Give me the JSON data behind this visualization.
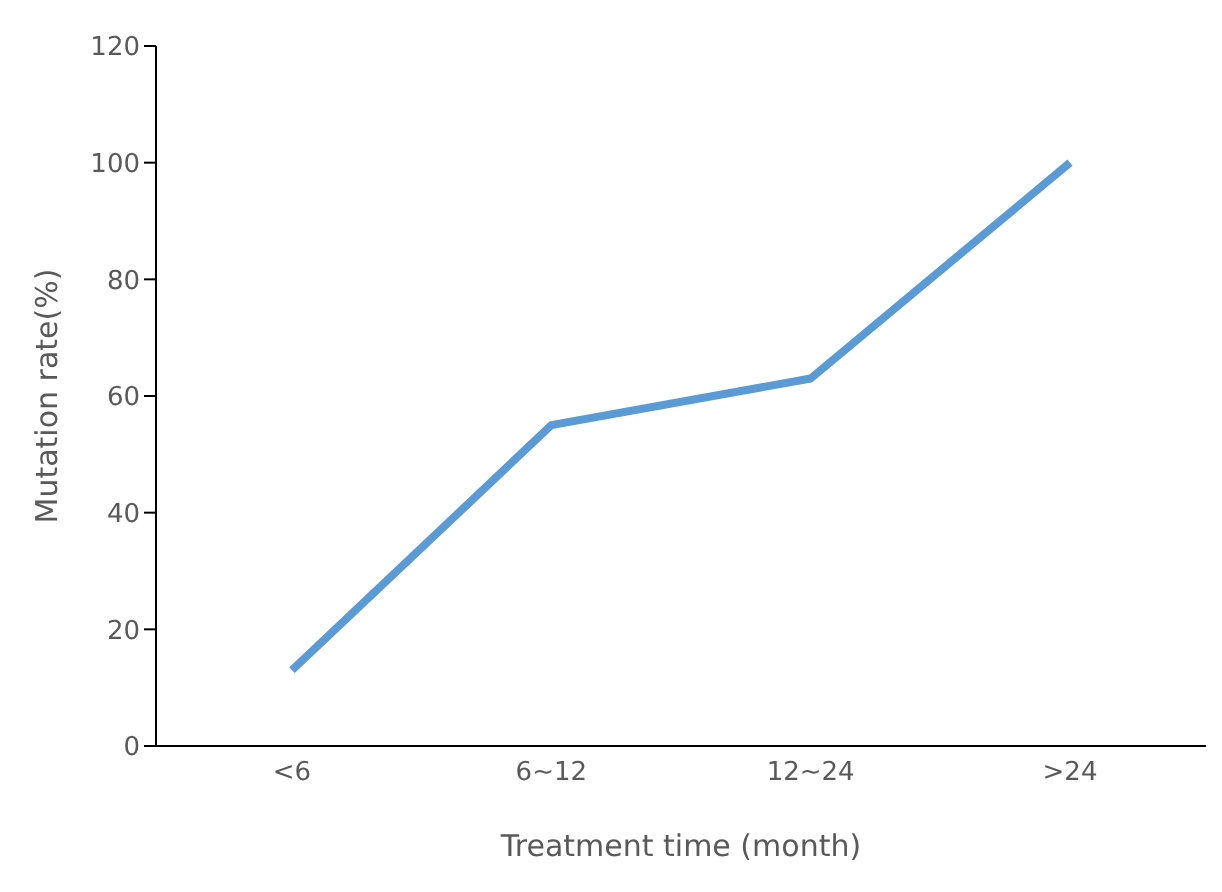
{
  "chart_data": {
    "type": "line",
    "xlabel": "Treatment time (month)",
    "ylabel": "Mutation rate(%)",
    "categories": [
      "<6",
      "6~12",
      "12~24",
      ">24"
    ],
    "series": [
      {
        "color": "#5b9bd5",
        "values": [
          13,
          55,
          63,
          100
        ]
      }
    ],
    "ylim": [
      0,
      120
    ],
    "yticks": [
      0,
      20,
      40,
      60,
      80,
      100,
      120
    ],
    "grid": false,
    "legend": false,
    "marker": "none",
    "line_style": "solid"
  }
}
